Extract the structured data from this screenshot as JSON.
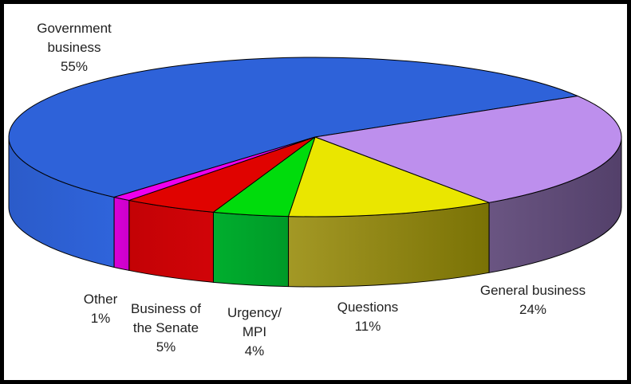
{
  "page": {
    "background": "#FFFFFF",
    "border_color": "#000000"
  },
  "chart_data": {
    "type": "pie",
    "style": "3d",
    "title": "",
    "direction": "clockwise",
    "start_bearing_deg": 221,
    "outline_color": "#000000",
    "slices": [
      {
        "id": "government-business",
        "label": "Government business",
        "value_pct": 55,
        "color": "#2E62D9",
        "side": [
          "#2B5BC9",
          "#2F64DB"
        ],
        "label_lines": [
          "Government",
          "business",
          "55%"
        ]
      },
      {
        "id": "general-business",
        "label": "General business",
        "value_pct": 24,
        "color": "#BD8FED",
        "side": [
          "#6A5582",
          "#53406A"
        ],
        "label_lines": [
          "General business",
          "24%"
        ]
      },
      {
        "id": "questions",
        "label": "Questions",
        "value_pct": 11,
        "color": "#EAE600",
        "side": [
          "#A39825",
          "#7A7205"
        ],
        "label_lines": [
          "Questions",
          "11%"
        ]
      },
      {
        "id": "urgency-mpi",
        "label": "Urgency/MPI",
        "value_pct": 4,
        "color": "#00DC0C",
        "side": [
          "#00AE2E",
          "#009A28"
        ],
        "label_lines": [
          "Urgency/",
          "MPI",
          "4%"
        ]
      },
      {
        "id": "business-of-the-senate",
        "label": "Business of the Senate",
        "value_pct": 5,
        "color": "#E00300",
        "side": [
          "#C30205",
          "#D10408"
        ],
        "label_lines": [
          "Business of",
          "the Senate",
          "5%"
        ]
      },
      {
        "id": "other",
        "label": "Other",
        "value_pct": 1,
        "color": "#EE00EE",
        "side": [
          "#D900D7",
          "#CC00CA"
        ],
        "label_lines": [
          "Other",
          "1%"
        ]
      }
    ]
  }
}
